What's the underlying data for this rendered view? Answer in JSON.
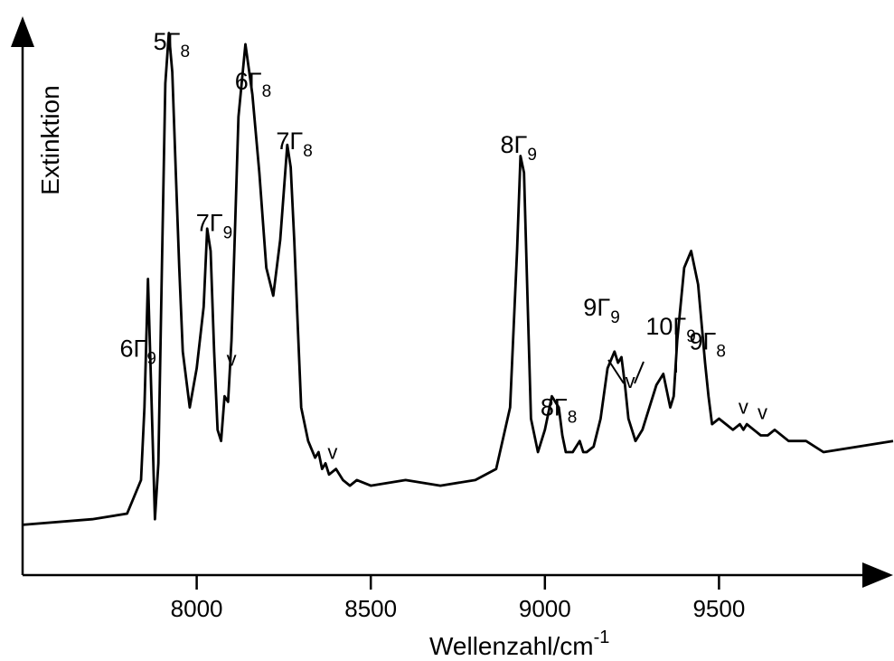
{
  "chart_data": {
    "type": "line",
    "xlabel": "Wellenzahl/cm",
    "xlabel_sup": "-1",
    "ylabel": "Extinktion",
    "xlim": [
      7500,
      10000
    ],
    "ylim": [
      0,
      1
    ],
    "x_ticks": [
      8000,
      8500,
      9000,
      9500
    ],
    "x_tick_labels": [
      "8000",
      "8500",
      "9000",
      "9500"
    ],
    "grid": false,
    "legend": "none",
    "series": [
      {
        "x": [
          7500,
          7700,
          7800,
          7820,
          7840,
          7850,
          7860,
          7870,
          7880,
          7890,
          7900,
          7910,
          7920,
          7930,
          7940,
          7950,
          7960,
          7980,
          8000,
          8020,
          8030,
          8040,
          8050,
          8060,
          8070,
          8080,
          8090,
          8100,
          8110,
          8120,
          8140,
          8160,
          8180,
          8200,
          8220,
          8240,
          8260,
          8270,
          8280,
          8290,
          8300,
          8320,
          8340,
          8350,
          8360,
          8370,
          8380,
          8400,
          8420,
          8440,
          8460,
          8500,
          8600,
          8700,
          8800,
          8860,
          8900,
          8920,
          8930,
          8940,
          8950,
          8960,
          8980,
          9000,
          9020,
          9040,
          9050,
          9060,
          9080,
          9100,
          9110,
          9120,
          9140,
          9160,
          9180,
          9200,
          9210,
          9220,
          9230,
          9240,
          9260,
          9280,
          9300,
          9320,
          9340,
          9360,
          9370,
          9380,
          9400,
          9420,
          9440,
          9460,
          9470,
          9480,
          9500,
          9520,
          9540,
          9560,
          9570,
          9580,
          9600,
          9620,
          9640,
          9660,
          9700,
          9750,
          9800,
          9900,
          10000
        ],
        "y": [
          0.09,
          0.1,
          0.11,
          0.14,
          0.17,
          0.3,
          0.53,
          0.32,
          0.1,
          0.2,
          0.55,
          0.88,
          0.97,
          0.9,
          0.72,
          0.55,
          0.4,
          0.3,
          0.37,
          0.48,
          0.62,
          0.58,
          0.4,
          0.26,
          0.24,
          0.32,
          0.31,
          0.42,
          0.62,
          0.82,
          0.95,
          0.86,
          0.72,
          0.55,
          0.5,
          0.6,
          0.77,
          0.73,
          0.6,
          0.45,
          0.3,
          0.24,
          0.21,
          0.22,
          0.19,
          0.2,
          0.18,
          0.19,
          0.17,
          0.16,
          0.17,
          0.16,
          0.17,
          0.16,
          0.17,
          0.19,
          0.3,
          0.58,
          0.75,
          0.72,
          0.5,
          0.28,
          0.22,
          0.26,
          0.32,
          0.3,
          0.25,
          0.22,
          0.22,
          0.24,
          0.22,
          0.22,
          0.23,
          0.28,
          0.37,
          0.4,
          0.38,
          0.39,
          0.34,
          0.28,
          0.24,
          0.26,
          0.3,
          0.34,
          0.36,
          0.3,
          0.32,
          0.42,
          0.55,
          0.58,
          0.52,
          0.38,
          0.32,
          0.27,
          0.28,
          0.27,
          0.26,
          0.27,
          0.26,
          0.27,
          0.26,
          0.25,
          0.25,
          0.26,
          0.24,
          0.24,
          0.22,
          0.23,
          0.24
        ]
      }
    ],
    "annotations": [
      {
        "base": "6Γ",
        "sub": "9",
        "x": 7868
      },
      {
        "base": "5Γ",
        "sub": "8",
        "x": 7928
      },
      {
        "base": "7Γ",
        "sub": "9",
        "x": 8040
      },
      {
        "base": "6Γ",
        "sub": "8",
        "x": 8162
      },
      {
        "base": "7Γ",
        "sub": "8",
        "x": 8270
      },
      {
        "base": "8Γ",
        "sub": "9",
        "x": 8940
      },
      {
        "base": "8Γ",
        "sub": "8",
        "x": 9050
      },
      {
        "base": "9Γ",
        "sub": "9",
        "x": 9220
      },
      {
        "base": "10Γ",
        "sub": "9",
        "x": 9372
      },
      {
        "base": "9Γ",
        "sub": "8",
        "x": 9462
      }
    ],
    "v_markers": [
      {
        "label": "v",
        "x": 8100
      },
      {
        "label": "v",
        "x": 8390
      },
      {
        "label": "v",
        "x": 9245
      },
      {
        "label": "v",
        "x": 9570
      },
      {
        "label": "v",
        "x": 9625
      }
    ]
  }
}
